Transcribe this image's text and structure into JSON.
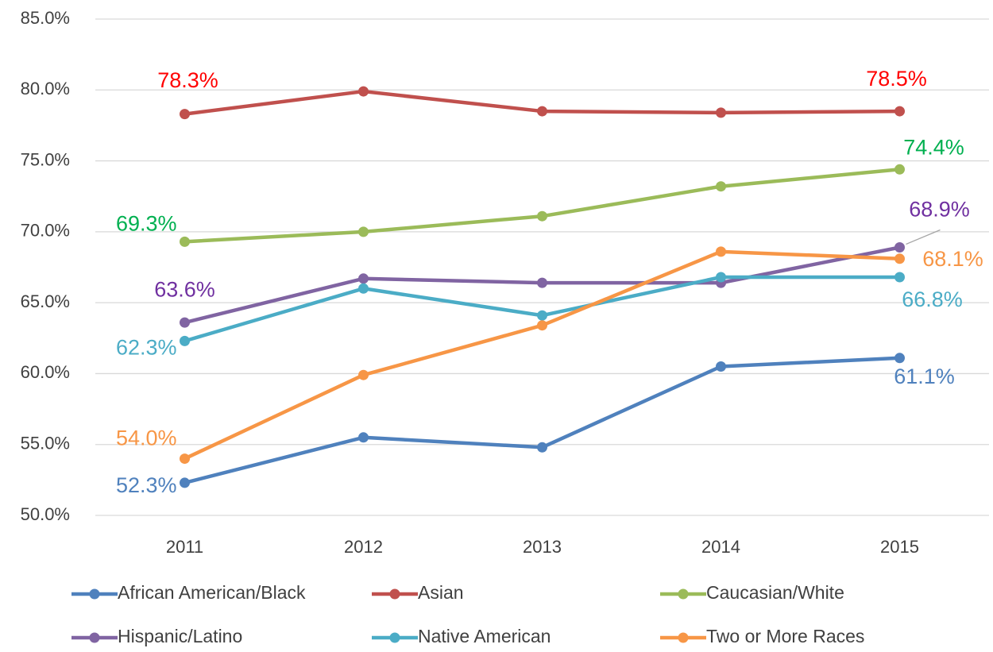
{
  "chart_data": {
    "type": "line",
    "x": [
      "2011",
      "2012",
      "2013",
      "2014",
      "2015"
    ],
    "series": [
      {
        "name": "African American/Black",
        "color": "#4f81bd",
        "label_color": "#4f81bd",
        "values": [
          52.3,
          55.5,
          54.8,
          60.5,
          61.1
        ],
        "value_labels": [
          "52.3%",
          null,
          null,
          null,
          "61.1%"
        ]
      },
      {
        "name": "Asian",
        "color": "#c0504d",
        "label_color": "#ff0000",
        "values": [
          78.3,
          79.9,
          78.5,
          78.4,
          78.5
        ],
        "value_labels": [
          "78.3%",
          null,
          null,
          null,
          "78.5%"
        ]
      },
      {
        "name": "Caucasian/White",
        "color": "#9bbb59",
        "label_color": "#00b050",
        "values": [
          69.3,
          70.0,
          71.1,
          73.2,
          74.4
        ],
        "value_labels": [
          "69.3%",
          null,
          null,
          null,
          "74.4%"
        ]
      },
      {
        "name": "Hispanic/Latino",
        "color": "#8064a2",
        "label_color": "#7030a0",
        "values": [
          63.6,
          66.7,
          66.4,
          66.4,
          68.9
        ],
        "value_labels": [
          "63.6%",
          null,
          null,
          null,
          "68.9%"
        ]
      },
      {
        "name": "Native American",
        "color": "#4bacc6",
        "label_color": "#4bacc6",
        "values": [
          62.3,
          66.0,
          64.1,
          66.8,
          66.8
        ],
        "value_labels": [
          "62.3%",
          null,
          null,
          null,
          "66.8%"
        ]
      },
      {
        "name": "Two or More Races",
        "color": "#f79646",
        "label_color": "#f79646",
        "values": [
          54.0,
          59.9,
          63.4,
          68.6,
          68.1
        ],
        "value_labels": [
          "54.0%",
          null,
          null,
          null,
          "68.1%"
        ]
      }
    ],
    "ylim": [
      50,
      85
    ],
    "yticks": [
      {
        "value": 50,
        "label": "50.0%"
      },
      {
        "value": 55,
        "label": "55.0%"
      },
      {
        "value": 60,
        "label": "60.0%"
      },
      {
        "value": 65,
        "label": "65.0%"
      },
      {
        "value": 70,
        "label": "70.0%"
      },
      {
        "value": 75,
        "label": "75.0%"
      },
      {
        "value": 80,
        "label": "80.0%"
      },
      {
        "value": 85,
        "label": "85.0%"
      }
    ],
    "grid": true,
    "legend": "bottom"
  }
}
